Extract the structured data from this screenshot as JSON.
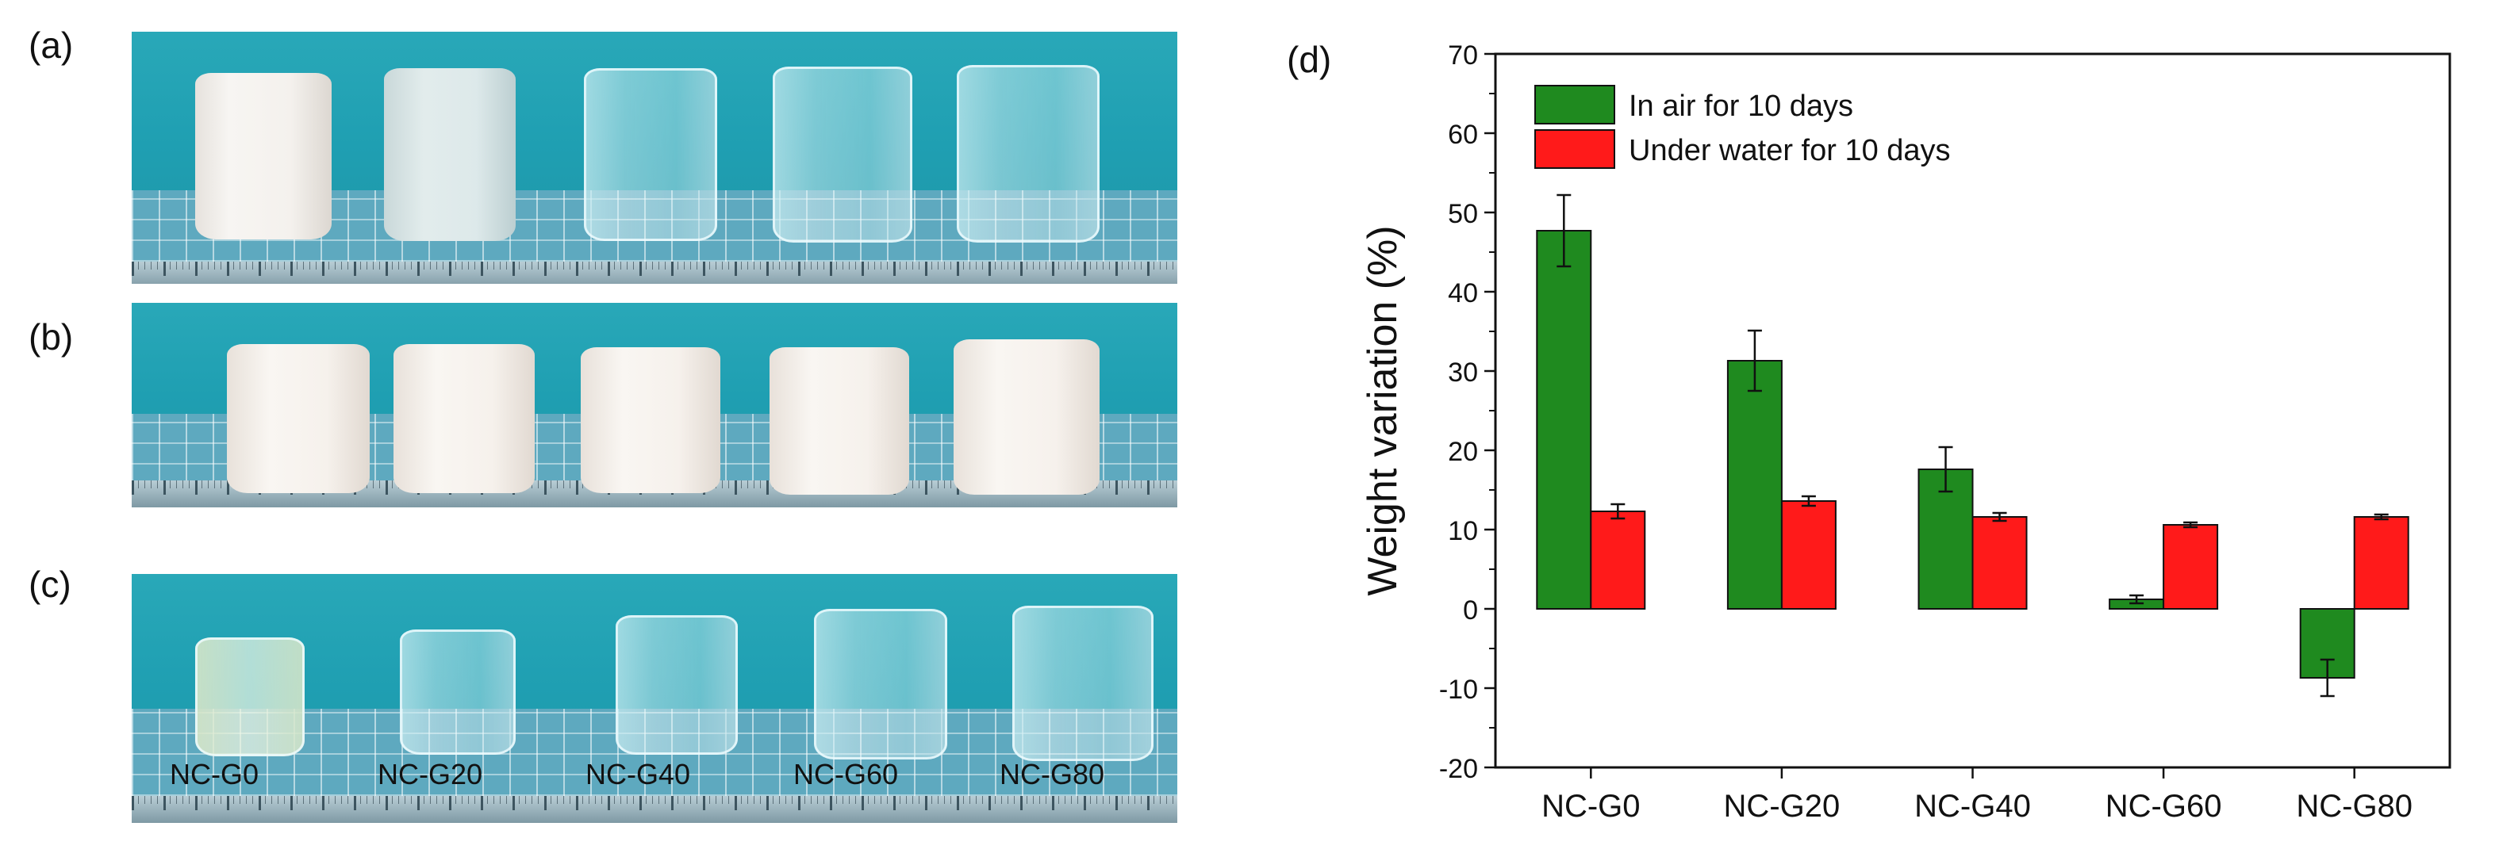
{
  "panels": {
    "a": "(a)",
    "b": "(b)",
    "c": "(c)",
    "d": "(d)"
  },
  "sample_labels": [
    "NC-G0",
    "NC-G20",
    "NC-G40",
    "NC-G60",
    "NC-G80"
  ],
  "colors": {
    "air": "#1f8a1f",
    "water": "#ff1a1a",
    "background_teal": "#229fb2"
  },
  "chart_data": {
    "type": "bar",
    "title": "",
    "xlabel": "",
    "ylabel": "Weight variation (%)",
    "ylim": [
      -20,
      70
    ],
    "yticks": [
      -20,
      -10,
      0,
      10,
      20,
      30,
      40,
      50,
      60,
      70
    ],
    "categories": [
      "NC-G0",
      "NC-G20",
      "NC-G40",
      "NC-G60",
      "NC-G80"
    ],
    "series": [
      {
        "name": "In air for 10 days",
        "values": [
          47.7,
          31.3,
          17.6,
          1.2,
          -8.7
        ],
        "errors": [
          4.5,
          3.8,
          2.8,
          0.5,
          2.3
        ],
        "color": "#1f8a1f"
      },
      {
        "name": "Under water for 10 days",
        "values": [
          12.3,
          13.6,
          11.6,
          10.6,
          11.6
        ],
        "errors": [
          0.9,
          0.6,
          0.5,
          0.3,
          0.3
        ],
        "color": "#ff1a1a"
      }
    ],
    "legend_position": "top-left",
    "grid": false
  }
}
